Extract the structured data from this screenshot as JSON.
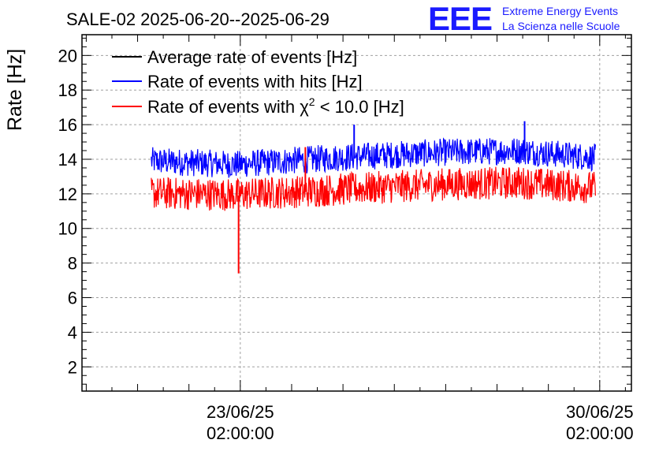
{
  "header": {
    "title": "SALE-02 2025-06-20--2025-06-29"
  },
  "logo": {
    "mark": "EEE",
    "line1": "Extreme Energy Events",
    "line2": "La Scienza nelle Scuole",
    "color": "#1a1aff"
  },
  "chart_data": {
    "type": "line",
    "title": "SALE-02 2025-06-20--2025-06-29",
    "xlabel": "",
    "ylabel": "Rate [Hz]",
    "ylim": [
      0.6,
      21.2
    ],
    "yticks": [
      2,
      4,
      6,
      8,
      10,
      12,
      14,
      16,
      18,
      20
    ],
    "xlim_days": [
      0,
      10.7
    ],
    "xdomain_note": "x in days since 2025-06-20 00:00; labeled ticks at 23/06/25 02:00:00 and 30/06/25 02:00:00",
    "x_range_data_days": [
      1.35,
      10.0
    ],
    "xtick_labels": [
      {
        "day": 3.083,
        "date": "23/06/25",
        "time": "02:00:00"
      },
      {
        "day": 10.083,
        "date": "30/06/25",
        "time": "02:00:00"
      }
    ],
    "grid": true,
    "legend_position": "top-left",
    "series": [
      {
        "name": "Average rate of events [Hz]",
        "color": "#000000",
        "values": []
      },
      {
        "name": "Rate of events with hits [Hz]",
        "color": "#0000ff",
        "keypoints_x_days": [
          1.35,
          3.0,
          5.0,
          7.0,
          8.5,
          10.0
        ],
        "keypoints_y": [
          13.8,
          13.6,
          14.0,
          14.3,
          14.4,
          14.0
        ],
        "band_low_offset": -0.7,
        "band_high_offset": 0.9,
        "spikes": [
          {
            "x_day": 5.3,
            "y": 16.0
          },
          {
            "x_day": 8.62,
            "y": 16.2
          }
        ]
      },
      {
        "name": "Rate of events with χ² < 10.0 [Hz]",
        "color": "#ff0000",
        "keypoints_x_days": [
          1.35,
          3.0,
          5.0,
          7.0,
          8.5,
          10.0
        ],
        "keypoints_y": [
          12.0,
          11.9,
          12.2,
          12.5,
          12.6,
          12.3
        ],
        "band_low_offset": -0.9,
        "band_high_offset": 1.0,
        "spikes": [
          {
            "x_day": 3.05,
            "y": 7.4
          },
          {
            "x_day": 4.35,
            "y": 14.7
          }
        ]
      }
    ]
  },
  "legend": {
    "items": [
      {
        "label": "Average rate of events [Hz]",
        "color": "#000000"
      },
      {
        "label": "Rate of events with hits [Hz]",
        "color": "#0000ff"
      },
      {
        "label_prefix": "Rate of events with ",
        "label_symbol": "χ",
        "label_sup": "2",
        "label_suffix": " < 10.0 [Hz]",
        "color": "#ff0000"
      }
    ]
  }
}
